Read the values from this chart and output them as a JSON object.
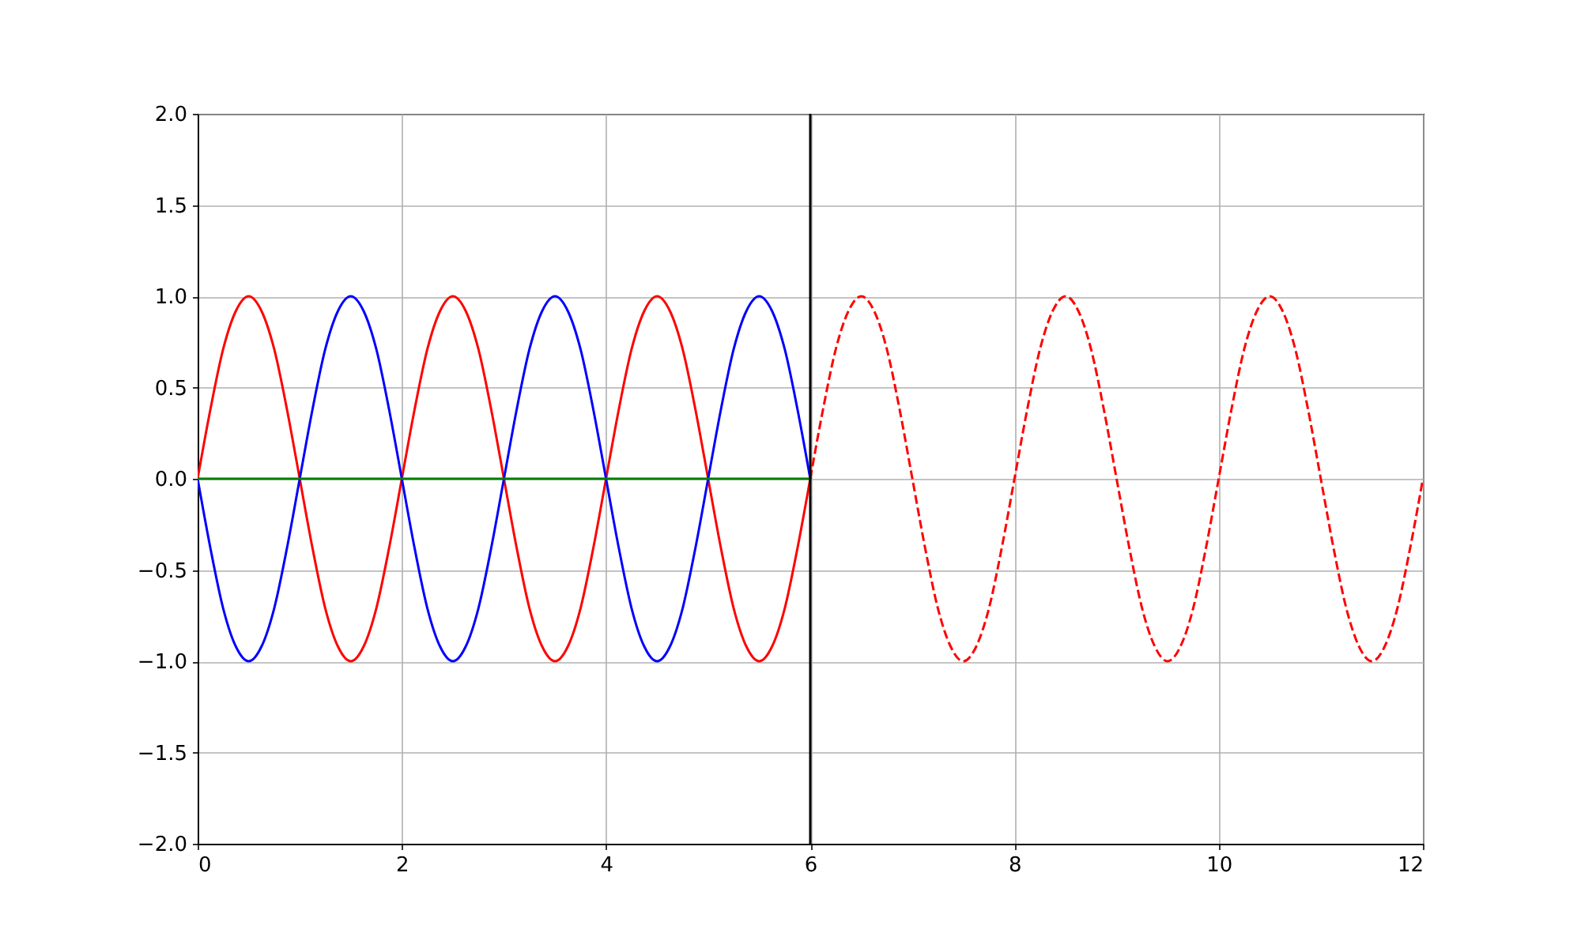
{
  "chart_data": {
    "type": "line",
    "xlim": [
      0,
      12
    ],
    "ylim": [
      -2,
      2
    ],
    "xticks": [
      0,
      2,
      4,
      6,
      8,
      10,
      12
    ],
    "yticks": [
      {
        "value": -2,
        "label": "−2.0"
      },
      {
        "value": -1.5,
        "label": "−1.5"
      },
      {
        "value": -1,
        "label": "−1.0"
      },
      {
        "value": -0.5,
        "label": "−0.5"
      },
      {
        "value": 0,
        "label": "0.0"
      },
      {
        "value": 0.5,
        "label": "0.5"
      },
      {
        "value": 1,
        "label": "1.0"
      },
      {
        "value": 1.5,
        "label": "1.5"
      },
      {
        "value": 2,
        "label": "2.0"
      }
    ],
    "grid": true,
    "series": [
      {
        "color": "#ff0000",
        "line_style": "solid",
        "x": [
          0,
          0.125,
          0.25,
          0.375,
          0.5,
          0.625,
          0.75,
          0.875,
          1,
          1.125,
          1.25,
          1.375,
          1.5,
          1.625,
          1.75,
          1.875,
          2,
          2.125,
          2.25,
          2.375,
          2.5,
          2.625,
          2.75,
          2.875,
          3,
          3.125,
          3.25,
          3.375,
          3.5,
          3.625,
          3.75,
          3.875,
          4,
          4.125,
          4.25,
          4.375,
          4.5,
          4.625,
          4.75,
          4.875,
          5,
          5.125,
          5.25,
          5.375,
          5.5,
          5.625,
          5.75,
          5.875,
          6
        ],
        "values": [
          0,
          0.38,
          0.71,
          0.92,
          1,
          0.92,
          0.71,
          0.38,
          0,
          -0.38,
          -0.71,
          -0.92,
          -1,
          -0.92,
          -0.71,
          -0.38,
          0,
          0.38,
          0.71,
          0.92,
          1,
          0.92,
          0.71,
          0.38,
          0,
          -0.38,
          -0.71,
          -0.92,
          -1,
          -0.92,
          -0.71,
          -0.38,
          0,
          0.38,
          0.71,
          0.92,
          1,
          0.92,
          0.71,
          0.38,
          0,
          -0.38,
          -0.71,
          -0.92,
          -1,
          -0.92,
          -0.71,
          -0.38,
          0
        ]
      },
      {
        "color": "#0000ff",
        "line_style": "solid",
        "x": [
          0,
          0.125,
          0.25,
          0.375,
          0.5,
          0.625,
          0.75,
          0.875,
          1,
          1.125,
          1.25,
          1.375,
          1.5,
          1.625,
          1.75,
          1.875,
          2,
          2.125,
          2.25,
          2.375,
          2.5,
          2.625,
          2.75,
          2.875,
          3,
          3.125,
          3.25,
          3.375,
          3.5,
          3.625,
          3.75,
          3.875,
          4,
          4.125,
          4.25,
          4.375,
          4.5,
          4.625,
          4.75,
          4.875,
          5,
          5.125,
          5.25,
          5.375,
          5.5,
          5.625,
          5.75,
          5.875,
          6
        ],
        "values": [
          0,
          -0.38,
          -0.71,
          -0.92,
          -1,
          -0.92,
          -0.71,
          -0.38,
          0,
          0.38,
          0.71,
          0.92,
          1,
          0.92,
          0.71,
          0.38,
          0,
          -0.38,
          -0.71,
          -0.92,
          -1,
          -0.92,
          -0.71,
          -0.38,
          0,
          0.38,
          0.71,
          0.92,
          1,
          0.92,
          0.71,
          0.38,
          0,
          -0.38,
          -0.71,
          -0.92,
          -1,
          -0.92,
          -0.71,
          -0.38,
          0,
          0.38,
          0.71,
          0.92,
          1,
          0.92,
          0.71,
          0.38,
          0
        ]
      },
      {
        "color": "#008000",
        "line_style": "solid",
        "x": [
          0,
          6
        ],
        "values": [
          0,
          0
        ]
      },
      {
        "color": "#ff0000",
        "line_style": "dashed",
        "x": [
          6,
          6.125,
          6.25,
          6.375,
          6.5,
          6.625,
          6.75,
          6.875,
          7,
          7.125,
          7.25,
          7.375,
          7.5,
          7.625,
          7.75,
          7.875,
          8,
          8.125,
          8.25,
          8.375,
          8.5,
          8.625,
          8.75,
          8.875,
          9,
          9.125,
          9.25,
          9.375,
          9.5,
          9.625,
          9.75,
          9.875,
          10,
          10.125,
          10.25,
          10.375,
          10.5,
          10.625,
          10.75,
          10.875,
          11,
          11.125,
          11.25,
          11.375,
          11.5,
          11.625,
          11.75,
          11.875,
          12
        ],
        "values": [
          0,
          0.38,
          0.71,
          0.92,
          1,
          0.92,
          0.71,
          0.38,
          0,
          -0.38,
          -0.71,
          -0.92,
          -1,
          -0.92,
          -0.71,
          -0.38,
          0,
          0.38,
          0.71,
          0.92,
          1,
          0.92,
          0.71,
          0.38,
          0,
          -0.38,
          -0.71,
          -0.92,
          -1,
          -0.92,
          -0.71,
          -0.38,
          0,
          0.38,
          0.71,
          0.92,
          1,
          0.92,
          0.71,
          0.38,
          0,
          -0.38,
          -0.71,
          -0.92,
          -1,
          -0.92,
          -0.71,
          -0.38,
          0
        ]
      }
    ],
    "ref_lines": [
      {
        "axis": "x",
        "value": 6,
        "color": "#000000"
      }
    ]
  }
}
